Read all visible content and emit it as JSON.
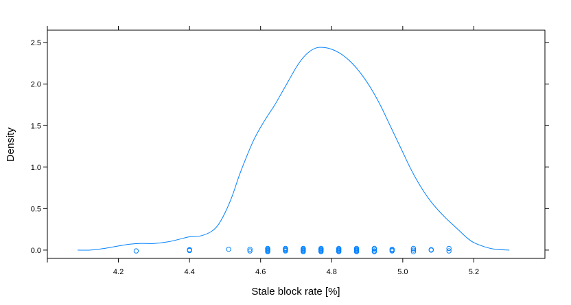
{
  "chart_data": {
    "type": "area",
    "title": "",
    "xlabel": "Stale block rate [%]",
    "ylabel": "Density",
    "xlim": [
      4.0,
      5.4
    ],
    "ylim": [
      -0.1,
      2.65
    ],
    "x_ticks": [
      4.2,
      4.4,
      4.6,
      4.8,
      5.0,
      5.2
    ],
    "x_tick_labels": [
      "4.2",
      "4.4",
      "4.6",
      "4.8",
      "5.0",
      "5.2"
    ],
    "y_ticks": [
      0.0,
      0.5,
      1.0,
      1.5,
      2.0,
      2.5
    ],
    "y_tick_labels": [
      "0.0",
      "0.5",
      "1.0",
      "1.5",
      "2.0",
      "2.5"
    ],
    "grid": false,
    "colors": {
      "series": "#0080ff",
      "axis": "#000000"
    },
    "series": [
      {
        "kind": "density-curve",
        "x": [
          4.085,
          4.12,
          4.16,
          4.2,
          4.23,
          4.26,
          4.3,
          4.34,
          4.38,
          4.4,
          4.43,
          4.46,
          4.48,
          4.5,
          4.52,
          4.54,
          4.56,
          4.58,
          4.6,
          4.62,
          4.64,
          4.66,
          4.68,
          4.7,
          4.72,
          4.74,
          4.76,
          4.78,
          4.8,
          4.82,
          4.84,
          4.86,
          4.88,
          4.9,
          4.92,
          4.94,
          4.96,
          4.98,
          5.0,
          5.02,
          5.04,
          5.06,
          5.08,
          5.1,
          5.12,
          5.14,
          5.16,
          5.18,
          5.2,
          5.23,
          5.26,
          5.3
        ],
        "y": [
          0.0,
          0.0,
          0.02,
          0.05,
          0.07,
          0.08,
          0.08,
          0.1,
          0.14,
          0.16,
          0.17,
          0.22,
          0.3,
          0.45,
          0.65,
          0.9,
          1.12,
          1.32,
          1.48,
          1.62,
          1.75,
          1.9,
          2.05,
          2.2,
          2.32,
          2.4,
          2.44,
          2.44,
          2.42,
          2.38,
          2.32,
          2.24,
          2.14,
          2.02,
          1.88,
          1.72,
          1.54,
          1.36,
          1.18,
          1.0,
          0.84,
          0.7,
          0.58,
          0.48,
          0.39,
          0.31,
          0.23,
          0.15,
          0.09,
          0.04,
          0.01,
          0.0
        ]
      },
      {
        "kind": "rug-points",
        "x": [
          4.25,
          4.4,
          4.4,
          4.4,
          4.51,
          4.57,
          4.57,
          4.62,
          4.62,
          4.62,
          4.62,
          4.62,
          4.67,
          4.67,
          4.67,
          4.67,
          4.72,
          4.72,
          4.72,
          4.72,
          4.72,
          4.77,
          4.77,
          4.77,
          4.77,
          4.77,
          4.82,
          4.82,
          4.82,
          4.82,
          4.82,
          4.87,
          4.87,
          4.87,
          4.87,
          4.87,
          4.92,
          4.92,
          4.92,
          4.92,
          4.97,
          4.97,
          4.97,
          5.03,
          5.03,
          5.03,
          5.08,
          5.08,
          5.13,
          5.13
        ],
        "y": [
          -0.01,
          0.0,
          0.005,
          -0.005,
          0.01,
          0.01,
          -0.01,
          0.02,
          0.01,
          0.0,
          -0.01,
          -0.02,
          0.02,
          0.01,
          0.0,
          -0.01,
          0.02,
          0.01,
          0.0,
          -0.01,
          -0.02,
          0.02,
          0.01,
          0.0,
          -0.01,
          -0.02,
          0.02,
          0.01,
          0.0,
          -0.01,
          -0.02,
          0.02,
          0.01,
          0.0,
          -0.01,
          -0.02,
          0.02,
          0.01,
          -0.01,
          -0.02,
          0.01,
          0.0,
          -0.01,
          0.02,
          0.0,
          -0.02,
          0.0,
          0.005,
          0.02,
          -0.01
        ]
      }
    ]
  }
}
